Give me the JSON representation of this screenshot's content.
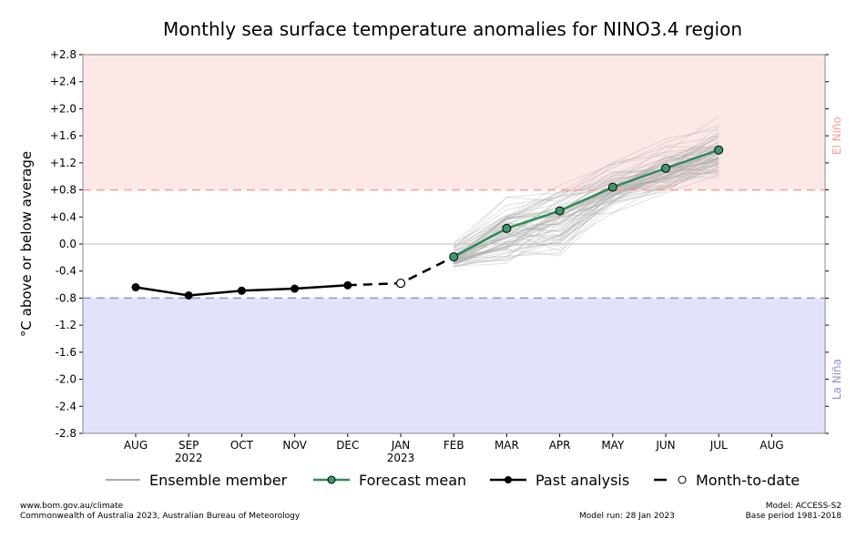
{
  "chart_data": {
    "type": "line",
    "title": "Monthly sea surface temperature anomalies for NINO3.4 region",
    "ylabel": "°C above or below average",
    "xlabel": "",
    "ylim": [
      -2.8,
      2.8
    ],
    "y_ticks": [
      "+2.8",
      "+2.4",
      "+2.0",
      "+1.6",
      "+1.2",
      "+0.8",
      "+0.4",
      "0.0",
      "-0.4",
      "-0.8",
      "-1.2",
      "-1.6",
      "-2.0",
      "-2.4",
      "-2.8"
    ],
    "categories": [
      "AUG",
      "SEP",
      "OCT",
      "NOV",
      "DEC",
      "JAN",
      "FEB",
      "MAR",
      "APR",
      "MAY",
      "JUN",
      "JUL",
      "AUG"
    ],
    "year_labels": [
      {
        "index": 1,
        "label": "2022"
      },
      {
        "index": 5,
        "label": "2023"
      }
    ],
    "thresholds": {
      "el_nino": 0.8,
      "la_nina": -0.8,
      "el_nino_label": "El Niño",
      "la_nina_label": "La Niña",
      "el_nino_color": "#ff9a9a",
      "la_nina_color": "#8f8fd6",
      "el_nino_fill": "#fde8e8",
      "la_nina_fill": "#e2e2fb"
    },
    "series": [
      {
        "name": "Past analysis",
        "x": [
          "AUG",
          "SEP",
          "OCT",
          "NOV",
          "DEC"
        ],
        "values": [
          -0.64,
          -0.76,
          -0.69,
          -0.66,
          -0.61
        ],
        "color": "#000000"
      },
      {
        "name": "Month-to-date",
        "x": [
          "DEC",
          "JAN",
          "FEB"
        ],
        "values": [
          -0.61,
          -0.58,
          -0.19
        ],
        "color": "#000000"
      },
      {
        "name": "Forecast mean",
        "x": [
          "FEB",
          "MAR",
          "APR",
          "MAY",
          "JUN",
          "JUL"
        ],
        "values": [
          -0.19,
          0.23,
          0.49,
          0.84,
          1.12,
          1.39
        ],
        "color": "#2e8b57"
      },
      {
        "name": "Ensemble member",
        "x": [
          "FEB",
          "MAR",
          "APR",
          "MAY",
          "JUN",
          "JUL"
        ],
        "envelope_min": [
          -0.36,
          -0.33,
          -0.18,
          0.46,
          0.75,
          0.95
        ],
        "envelope_max": [
          0.05,
          0.72,
          0.93,
          1.3,
          1.65,
          1.93
        ],
        "color": "#aaaaaa"
      }
    ],
    "grid": false,
    "legend_position": "bottom"
  },
  "legend": {
    "ensemble": "Ensemble member",
    "forecast": "Forecast mean",
    "past": "Past analysis",
    "mtd": "Month-to-date"
  },
  "footer": {
    "website": "www.bom.gov.au/climate",
    "copyright": "Commonwealth of Australia 2023, Australian Bureau of Meteorology",
    "model_run": "Model run: 28 Jan 2023",
    "model": "Model: ACCESS-S2",
    "base_period": "Base period 1981-2018"
  }
}
